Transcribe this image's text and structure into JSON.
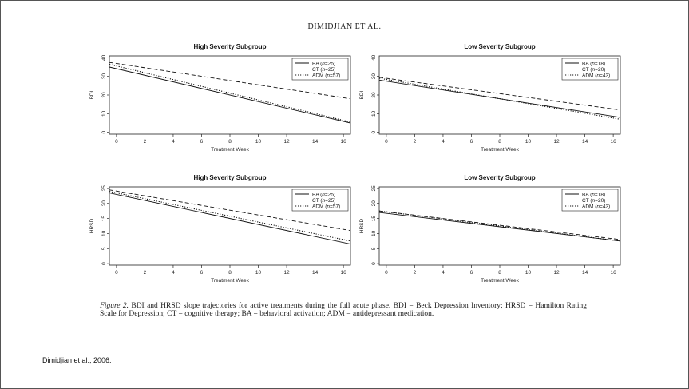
{
  "running_head": "DIMIDJIAN ET AL.",
  "caption": {
    "label": "Figure 2.",
    "text": "BDI and HRSD slope trajectories for active treatments during the full acute phase. BDI = Beck Depression Inventory; HRSD = Hamilton Rating Scale for Depression; CT = cognitive therapy; BA = behavioral activation; ADM = antidepressant medication."
  },
  "citation": "Dimidjian et al., 2006.",
  "chart_data": [
    {
      "type": "line",
      "title": "High Severity Subgroup",
      "xlabel": "Treatment Week",
      "ylabel": "BDI",
      "xlim": [
        -0.5,
        16.5
      ],
      "ylim": [
        -1,
        41
      ],
      "xticks": [
        0,
        2,
        4,
        6,
        8,
        10,
        12,
        14,
        16
      ],
      "yticks": [
        0,
        10,
        20,
        30,
        40
      ],
      "legend_position": "top-right",
      "series": [
        {
          "label": "BA",
          "n": "25",
          "style": "solid",
          "x": [
            -0.5,
            16.5
          ],
          "y": [
            35,
            5
          ]
        },
        {
          "label": "CT",
          "n": "25",
          "style": "dashed",
          "x": [
            -0.5,
            16.5
          ],
          "y": [
            37.5,
            18
          ]
        },
        {
          "label": "ADM",
          "n": "57",
          "style": "dotted",
          "x": [
            -0.5,
            16.5
          ],
          "y": [
            36.5,
            5.5
          ]
        }
      ]
    },
    {
      "type": "line",
      "title": "Low Severity Subgroup",
      "xlabel": "Treatment Week",
      "ylabel": "BDI",
      "xlim": [
        -0.5,
        16.5
      ],
      "ylim": [
        -1,
        41
      ],
      "xticks": [
        0,
        2,
        4,
        6,
        8,
        10,
        12,
        14,
        16
      ],
      "yticks": [
        0,
        10,
        20,
        30,
        40
      ],
      "legend_position": "top-right",
      "series": [
        {
          "label": "BA",
          "n": "18",
          "style": "solid",
          "x": [
            -0.5,
            16.5
          ],
          "y": [
            28,
            8
          ]
        },
        {
          "label": "CT",
          "n": "20",
          "style": "dashed",
          "x": [
            -0.5,
            16.5
          ],
          "y": [
            29.5,
            12
          ]
        },
        {
          "label": "ADM",
          "n": "43",
          "style": "dotted",
          "x": [
            -0.5,
            16.5
          ],
          "y": [
            29,
            7
          ]
        }
      ]
    },
    {
      "type": "line",
      "title": "High Severity Subgroup",
      "xlabel": "Treatment Week",
      "ylabel": "HRSD",
      "xlim": [
        -0.5,
        16.5
      ],
      "ylim": [
        -0.5,
        25.5
      ],
      "xticks": [
        0,
        2,
        4,
        6,
        8,
        10,
        12,
        14,
        16
      ],
      "yticks": [
        0,
        5,
        10,
        15,
        20,
        25
      ],
      "legend_position": "top-right",
      "series": [
        {
          "label": "BA",
          "n": "25",
          "style": "solid",
          "x": [
            -0.5,
            16.5
          ],
          "y": [
            23.5,
            6.5
          ]
        },
        {
          "label": "CT",
          "n": "25",
          "style": "dashed",
          "x": [
            -0.5,
            16.5
          ],
          "y": [
            24.5,
            11
          ]
        },
        {
          "label": "ADM",
          "n": "57",
          "style": "dotted",
          "x": [
            -0.5,
            16.5
          ],
          "y": [
            24,
            7.5
          ]
        }
      ]
    },
    {
      "type": "line",
      "title": "Low Severity Subgroup",
      "xlabel": "Treatment Week",
      "ylabel": "HRSD",
      "xlim": [
        -0.5,
        16.5
      ],
      "ylim": [
        -0.5,
        25.5
      ],
      "xticks": [
        0,
        2,
        4,
        6,
        8,
        10,
        12,
        14,
        16
      ],
      "yticks": [
        0,
        5,
        10,
        15,
        20,
        25
      ],
      "legend_position": "top-right",
      "series": [
        {
          "label": "BA",
          "n": "18",
          "style": "solid",
          "x": [
            -0.5,
            16.5
          ],
          "y": [
            17,
            7.5
          ]
        },
        {
          "label": "CT",
          "n": "20",
          "style": "dashed",
          "x": [
            -0.5,
            16.5
          ],
          "y": [
            17.5,
            8
          ]
        },
        {
          "label": "ADM",
          "n": "43",
          "style": "dotted",
          "x": [
            -0.5,
            16.5
          ],
          "y": [
            17.5,
            7.5
          ]
        }
      ]
    }
  ]
}
